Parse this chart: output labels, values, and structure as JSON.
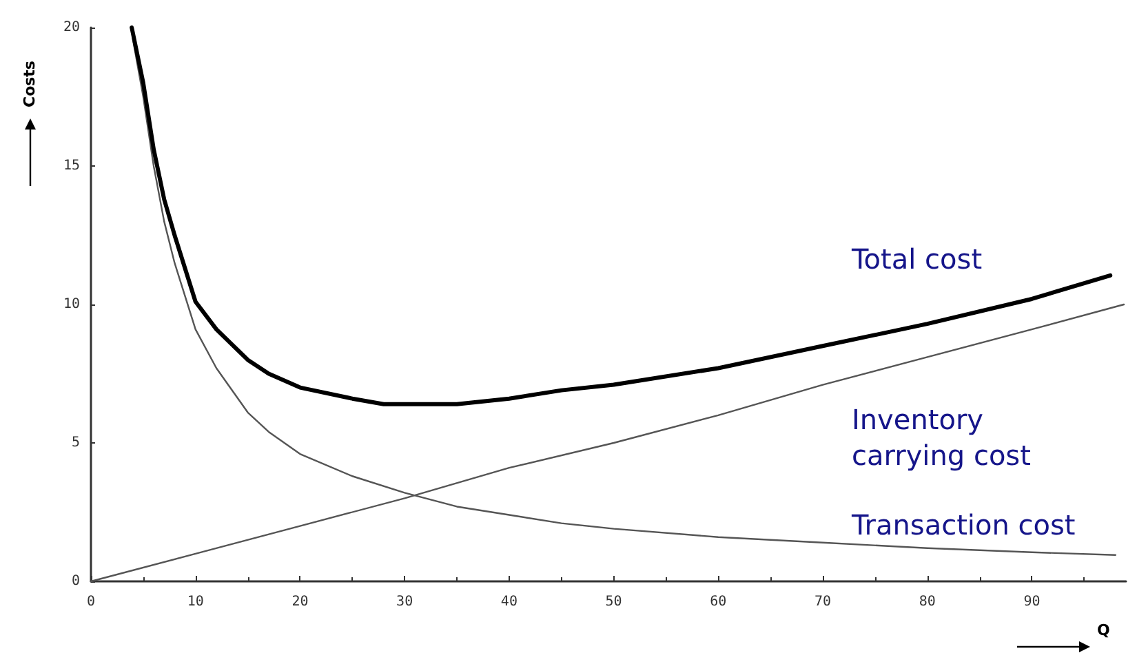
{
  "chart_data": {
    "type": "line",
    "xlabel": "Q",
    "ylabel": "Costs",
    "xlim": [
      0,
      99
    ],
    "xticks": [
      0,
      10,
      20,
      30,
      40,
      50,
      60,
      70,
      80,
      90
    ],
    "ylim": [
      0,
      20
    ],
    "yticks": [
      0,
      5,
      10,
      15,
      20
    ],
    "grid": false,
    "legend": false,
    "marker": "none",
    "line_style": "solid",
    "series": [
      {
        "name": "Total cost",
        "color": "#000000",
        "x": [
          3.9,
          5,
          6,
          7,
          8,
          10,
          12,
          15,
          17,
          20,
          25,
          28,
          30,
          35,
          40,
          45,
          50,
          60,
          70,
          80,
          90,
          97.5
        ],
        "values": [
          20,
          18,
          15.6,
          13.8,
          12.5,
          10.1,
          9.1,
          8.0,
          7.5,
          7.0,
          6.6,
          6.4,
          6.4,
          6.4,
          6.6,
          6.9,
          7.1,
          7.7,
          8.5,
          9.3,
          10.2,
          11.05
        ]
      },
      {
        "name": "Inventory\ncarrying cost",
        "color": "#555555",
        "x": [
          0,
          10,
          20,
          30,
          40,
          50,
          60,
          70,
          80,
          90,
          98.8
        ],
        "values": [
          0,
          1.0,
          2.0,
          3.0,
          4.1,
          5.0,
          6.0,
          7.1,
          8.1,
          9.1,
          10.0
        ]
      },
      {
        "name": "Transaction cost",
        "color": "#555555",
        "x": [
          4,
          5,
          6,
          7,
          8,
          10,
          12,
          15,
          17,
          20,
          25,
          30,
          35,
          40,
          45,
          50,
          60,
          70,
          80,
          90,
          98
        ],
        "values": [
          19.6,
          17.5,
          15,
          13,
          11.5,
          9.1,
          7.7,
          6.1,
          5.4,
          4.6,
          3.8,
          3.2,
          2.7,
          2.4,
          2.1,
          1.9,
          1.6,
          1.4,
          1.2,
          1.05,
          0.95
        ]
      }
    ]
  }
}
